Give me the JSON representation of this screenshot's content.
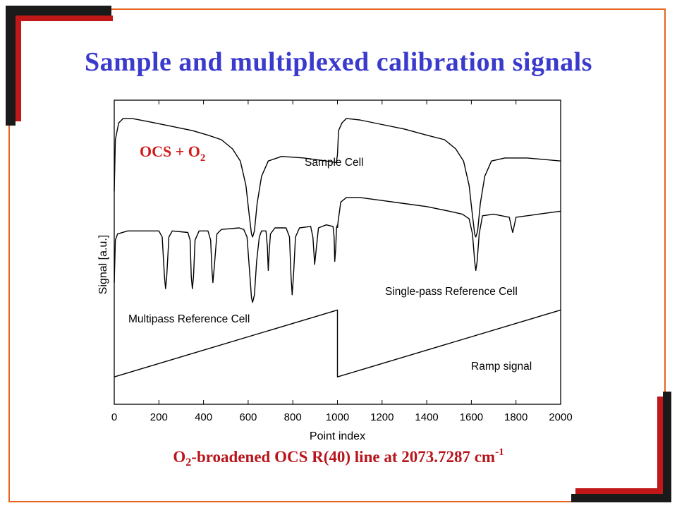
{
  "slide": {
    "title": "Sample and multiplexed calibration signals",
    "caption": {
      "pre": "O",
      "sub": "2",
      "mid": "-broadened OCS R(40) line at 2073.7287 cm",
      "sup": "-1"
    }
  },
  "colors": {
    "title": "#3a3acd",
    "caption": "#b8161c",
    "annotation": "#d11a1a",
    "frame_orange": "#e8641e",
    "frame_dark": "#1a1a1a",
    "frame_red": "#c01818"
  },
  "chart_data": {
    "type": "line",
    "title": "",
    "xlabel": "Point index",
    "ylabel": "Signal [a.u.]",
    "xlim": [
      0,
      2000
    ],
    "ylim": [
      0,
      1
    ],
    "x_ticks": [
      "0",
      "200",
      "400",
      "600",
      "800",
      "1000",
      "1200",
      "1400",
      "1600",
      "1800",
      "2000"
    ],
    "y_ticks": [],
    "grid": false,
    "annotation": {
      "pre": "OCS + O",
      "sub": "2"
    },
    "series": [
      {
        "name": "Sample Cell",
        "points": [
          [
            0,
            0.7
          ],
          [
            5,
            0.87
          ],
          [
            20,
            0.925
          ],
          [
            40,
            0.94
          ],
          [
            80,
            0.94
          ],
          [
            150,
            0.93
          ],
          [
            250,
            0.915
          ],
          [
            350,
            0.9
          ],
          [
            420,
            0.885
          ],
          [
            480,
            0.87
          ],
          [
            530,
            0.84
          ],
          [
            565,
            0.8
          ],
          [
            590,
            0.72
          ],
          [
            605,
            0.62
          ],
          [
            615,
            0.56
          ],
          [
            620,
            0.55
          ],
          [
            628,
            0.57
          ],
          [
            640,
            0.66
          ],
          [
            660,
            0.75
          ],
          [
            690,
            0.8
          ],
          [
            750,
            0.815
          ],
          [
            850,
            0.81
          ],
          [
            950,
            0.8
          ],
          [
            995,
            0.795
          ],
          [
            1000,
            0.82
          ],
          [
            1005,
            0.9
          ],
          [
            1020,
            0.925
          ],
          [
            1040,
            0.94
          ],
          [
            1100,
            0.935
          ],
          [
            1200,
            0.92
          ],
          [
            1300,
            0.905
          ],
          [
            1400,
            0.885
          ],
          [
            1480,
            0.87
          ],
          [
            1530,
            0.84
          ],
          [
            1565,
            0.8
          ],
          [
            1590,
            0.72
          ],
          [
            1605,
            0.62
          ],
          [
            1615,
            0.56
          ],
          [
            1620,
            0.55
          ],
          [
            1628,
            0.57
          ],
          [
            1640,
            0.66
          ],
          [
            1660,
            0.75
          ],
          [
            1690,
            0.8
          ],
          [
            1750,
            0.81
          ],
          [
            1850,
            0.81
          ],
          [
            2000,
            0.8
          ]
        ]
      },
      {
        "name": "Multipass Reference Cell",
        "points": [
          [
            0,
            0.4
          ],
          [
            5,
            0.54
          ],
          [
            15,
            0.56
          ],
          [
            60,
            0.57
          ],
          [
            200,
            0.57
          ],
          [
            215,
            0.55
          ],
          [
            225,
            0.42
          ],
          [
            230,
            0.38
          ],
          [
            235,
            0.42
          ],
          [
            245,
            0.55
          ],
          [
            260,
            0.57
          ],
          [
            330,
            0.565
          ],
          [
            340,
            0.54
          ],
          [
            345,
            0.42
          ],
          [
            350,
            0.38
          ],
          [
            355,
            0.42
          ],
          [
            362,
            0.54
          ],
          [
            380,
            0.57
          ],
          [
            420,
            0.57
          ],
          [
            432,
            0.54
          ],
          [
            438,
            0.44
          ],
          [
            442,
            0.4
          ],
          [
            448,
            0.45
          ],
          [
            460,
            0.56
          ],
          [
            480,
            0.575
          ],
          [
            560,
            0.58
          ],
          [
            580,
            0.575
          ],
          [
            595,
            0.55
          ],
          [
            605,
            0.45
          ],
          [
            615,
            0.35
          ],
          [
            620,
            0.335
          ],
          [
            628,
            0.36
          ],
          [
            638,
            0.47
          ],
          [
            650,
            0.55
          ],
          [
            660,
            0.57
          ],
          [
            680,
            0.57
          ],
          [
            686,
            0.52
          ],
          [
            690,
            0.44
          ],
          [
            694,
            0.5
          ],
          [
            700,
            0.56
          ],
          [
            720,
            0.58
          ],
          [
            770,
            0.58
          ],
          [
            785,
            0.55
          ],
          [
            792,
            0.42
          ],
          [
            797,
            0.36
          ],
          [
            803,
            0.42
          ],
          [
            812,
            0.55
          ],
          [
            830,
            0.58
          ],
          [
            880,
            0.585
          ],
          [
            890,
            0.55
          ],
          [
            898,
            0.46
          ],
          [
            905,
            0.51
          ],
          [
            915,
            0.58
          ],
          [
            950,
            0.59
          ],
          [
            980,
            0.585
          ],
          [
            985,
            0.55
          ],
          [
            988,
            0.47
          ],
          [
            992,
            0.51
          ],
          [
            996,
            0.58
          ],
          [
            1000,
            0.59
          ]
        ]
      },
      {
        "name": "Single-pass Reference Cell",
        "points": [
          [
            1000,
            0.58
          ],
          [
            1003,
            0.6
          ],
          [
            1015,
            0.665
          ],
          [
            1040,
            0.68
          ],
          [
            1100,
            0.68
          ],
          [
            1200,
            0.67
          ],
          [
            1300,
            0.66
          ],
          [
            1400,
            0.65
          ],
          [
            1500,
            0.635
          ],
          [
            1560,
            0.625
          ],
          [
            1590,
            0.61
          ],
          [
            1605,
            0.56
          ],
          [
            1615,
            0.47
          ],
          [
            1620,
            0.44
          ],
          [
            1626,
            0.47
          ],
          [
            1635,
            0.56
          ],
          [
            1650,
            0.62
          ],
          [
            1700,
            0.625
          ],
          [
            1770,
            0.615
          ],
          [
            1780,
            0.58
          ],
          [
            1785,
            0.565
          ],
          [
            1790,
            0.58
          ],
          [
            1800,
            0.615
          ],
          [
            1900,
            0.625
          ],
          [
            2000,
            0.635
          ]
        ]
      },
      {
        "name": "Ramp signal",
        "points": [
          [
            0,
            0.09
          ],
          [
            1000,
            0.31
          ],
          [
            1000,
            0.09
          ],
          [
            2000,
            0.31
          ]
        ]
      }
    ]
  }
}
